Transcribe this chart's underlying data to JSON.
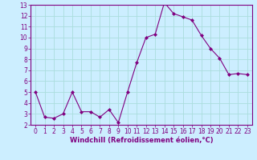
{
  "x": [
    0,
    1,
    2,
    3,
    4,
    5,
    6,
    7,
    8,
    9,
    10,
    11,
    12,
    13,
    14,
    15,
    16,
    17,
    18,
    19,
    20,
    21,
    22,
    23
  ],
  "y": [
    5,
    2.7,
    2.6,
    3.0,
    5.0,
    3.2,
    3.2,
    2.7,
    3.4,
    2.2,
    5.0,
    7.7,
    10.0,
    10.3,
    13.2,
    12.2,
    11.9,
    11.6,
    10.2,
    9.0,
    8.1,
    6.6,
    6.7,
    6.6
  ],
  "line_color": "#800080",
  "marker": "D",
  "marker_size": 2.0,
  "bg_color": "#cceeff",
  "grid_color": "#aadddd",
  "xlabel": "Windchill (Refroidissement éolien,°C)",
  "ylim": [
    2,
    13
  ],
  "xlim": [
    -0.5,
    23.5
  ],
  "yticks": [
    2,
    3,
    4,
    5,
    6,
    7,
    8,
    9,
    10,
    11,
    12,
    13
  ],
  "xticks": [
    0,
    1,
    2,
    3,
    4,
    5,
    6,
    7,
    8,
    9,
    10,
    11,
    12,
    13,
    14,
    15,
    16,
    17,
    18,
    19,
    20,
    21,
    22,
    23
  ],
  "tick_color": "#800080",
  "label_color": "#800080",
  "spine_color": "#800080",
  "font_size": 5.5,
  "xlabel_fontsize": 6.0
}
